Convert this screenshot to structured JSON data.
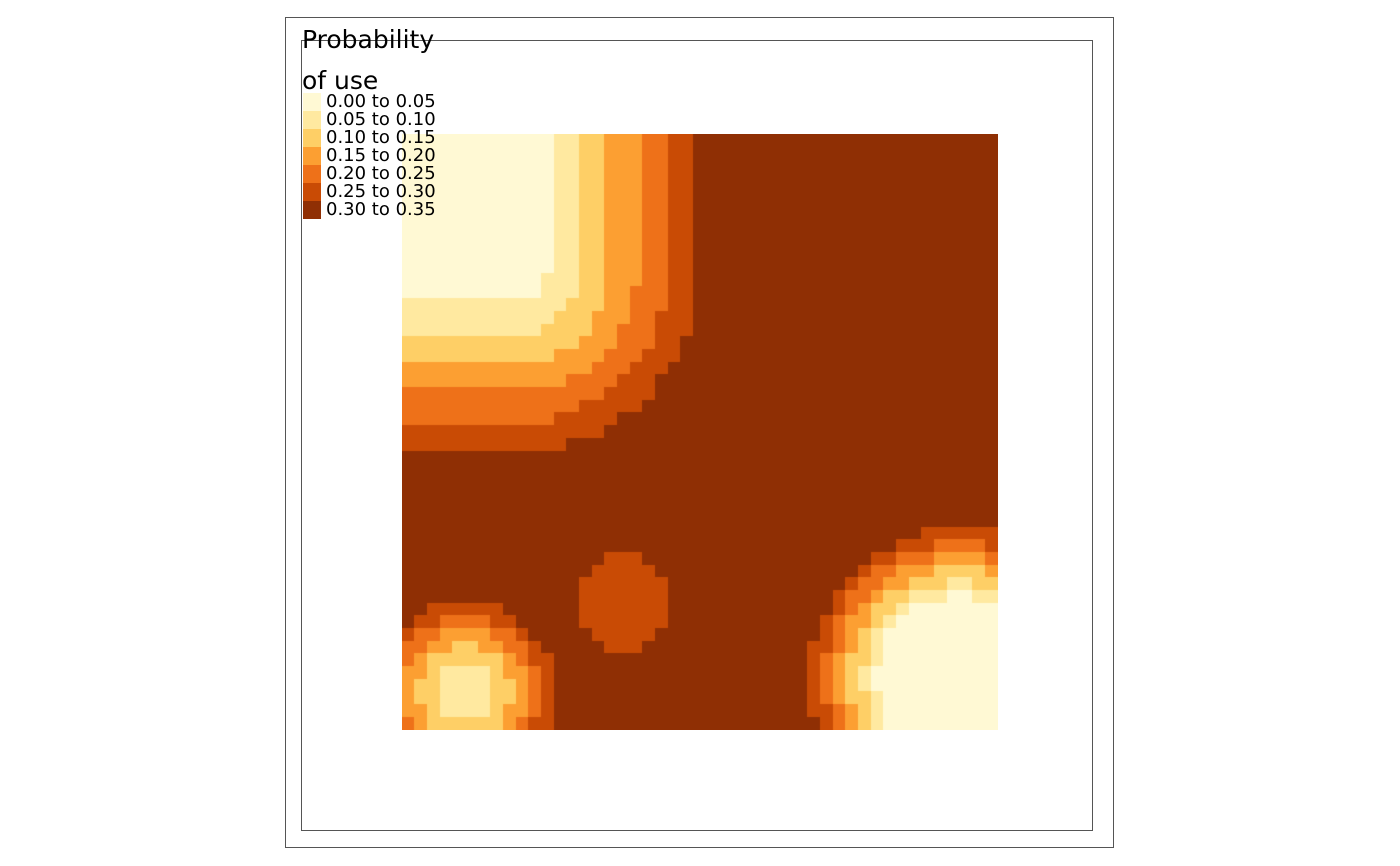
{
  "legend": {
    "title_line1": "Probability",
    "title_line2": "of use",
    "items": [
      {
        "label": "0.00 to 0.05",
        "color": "#FFF9D4"
      },
      {
        "label": "0.05 to 0.10",
        "color": "#FFE9A0"
      },
      {
        "label": "0.10 to 0.15",
        "color": "#FECF66"
      },
      {
        "label": "0.15 to 0.20",
        "color": "#FC9F32"
      },
      {
        "label": "0.20 to 0.25",
        "color": "#EE7119"
      },
      {
        "label": "0.25 to 0.30",
        "color": "#C94B05"
      },
      {
        "label": "0.30 to 0.35",
        "color": "#8F2F04"
      }
    ]
  },
  "map": {
    "legend_position": "top-left",
    "scale_classes": 7,
    "palette": "YlOrBr"
  }
}
